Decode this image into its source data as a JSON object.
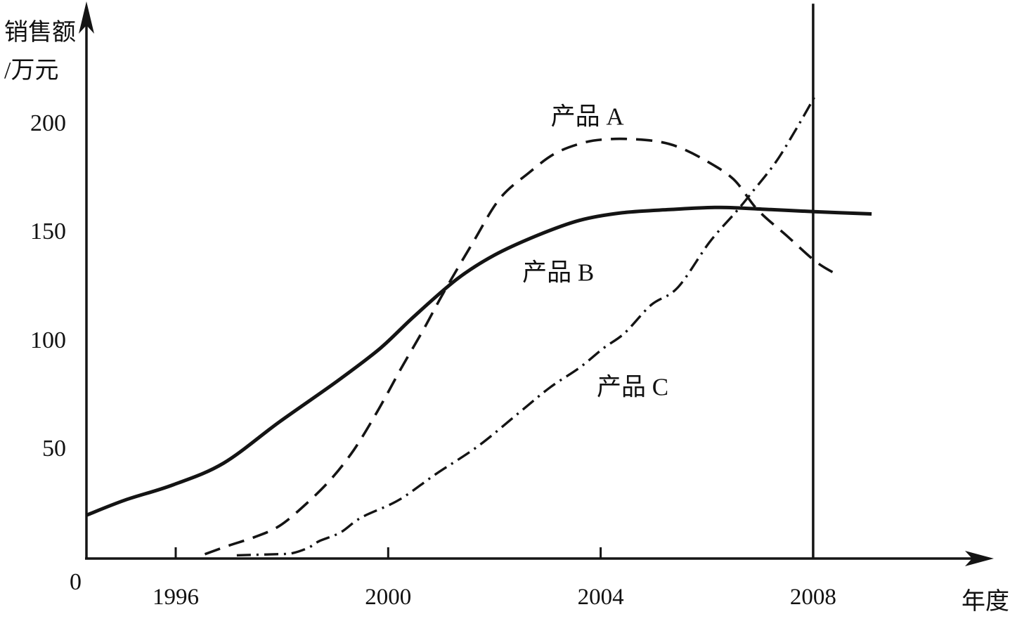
{
  "figure": {
    "y_axis_title_line1": "销售额",
    "y_axis_title_line2": "/万元",
    "origin_label": "0"
  },
  "colors": {
    "ink": "#141414",
    "background": "#ffffff"
  },
  "chart_data": {
    "type": "line",
    "title": "",
    "xlabel": "年度",
    "ylabel": "销售额/万元",
    "xlim": [
      1994.3,
      2011.3
    ],
    "ylim": [
      0,
      256
    ],
    "grid": false,
    "legend_position": "inline-annotations",
    "x_ticks": [
      1996,
      2000,
      2004
    ],
    "x_ticks_all": [
      1996,
      2000,
      2004,
      2008
    ],
    "y_ticks": [
      50,
      100,
      150,
      200
    ],
    "marker_line": {
      "x_year": 2008,
      "from_value": 0,
      "to_value": 256
    },
    "series": [
      {
        "id": "product-a",
        "name": "产品 A",
        "style": "dashed",
        "label_at": {
          "year": 2003.75,
          "value": 205
        },
        "x": [
          1996.55,
          1997.0,
          1997.5,
          1997.95,
          1998.4,
          1998.9,
          1999.35,
          1999.8,
          2000.25,
          2000.65,
          2001.05,
          2001.6,
          2002.1,
          2002.65,
          2003.15,
          2003.7,
          2004.15,
          2004.6,
          2005.05,
          2005.45,
          2005.95,
          2006.5,
          2006.95,
          2007.5,
          2008.05,
          2008.45
        ],
        "y": [
          2,
          6,
          10,
          15,
          24,
          36,
          50,
          68,
          88,
          105,
          123,
          146,
          166,
          178,
          187,
          192,
          193.5,
          193.5,
          192.5,
          190,
          184,
          175,
          161,
          149,
          137,
          131
        ]
      },
      {
        "id": "product-b",
        "name": "产品 B",
        "style": "solid",
        "label_at": {
          "year": 2003.2,
          "value": 133
        },
        "x": [
          1994.32,
          1995.05,
          1995.95,
          1996.9,
          1997.95,
          1999.05,
          1999.85,
          2000.5,
          2001.3,
          2002.0,
          2002.8,
          2003.6,
          2004.4,
          2005.3,
          2006.25,
          2007.2,
          2008.05,
          2009.1
        ],
        "y": [
          20,
          27,
          34,
          44,
          63,
          82,
          97,
          112,
          129,
          140,
          149,
          156,
          159.5,
          161,
          162,
          161,
          160,
          159
        ]
      },
      {
        "id": "product-c",
        "name": "产品 C",
        "style": "dashdot",
        "label_at": {
          "year": 2004.6,
          "value": 80
        },
        "x": [
          1997.15,
          1997.9,
          1998.2,
          1998.5,
          1998.7,
          1999.1,
          1999.5,
          2000.2,
          2000.9,
          2001.7,
          2002.5,
          2003.05,
          2003.6,
          2004.05,
          2004.45,
          2004.95,
          2005.45,
          2006.05,
          2006.55,
          2006.85,
          2007.3,
          2007.7,
          2008.05
        ],
        "y": [
          1.5,
          2,
          2.5,
          5,
          8,
          12,
          19,
          27,
          39,
          52,
          68,
          79,
          88,
          97,
          104,
          117,
          125,
          146,
          160,
          169,
          183,
          199,
          214
        ]
      }
    ]
  }
}
